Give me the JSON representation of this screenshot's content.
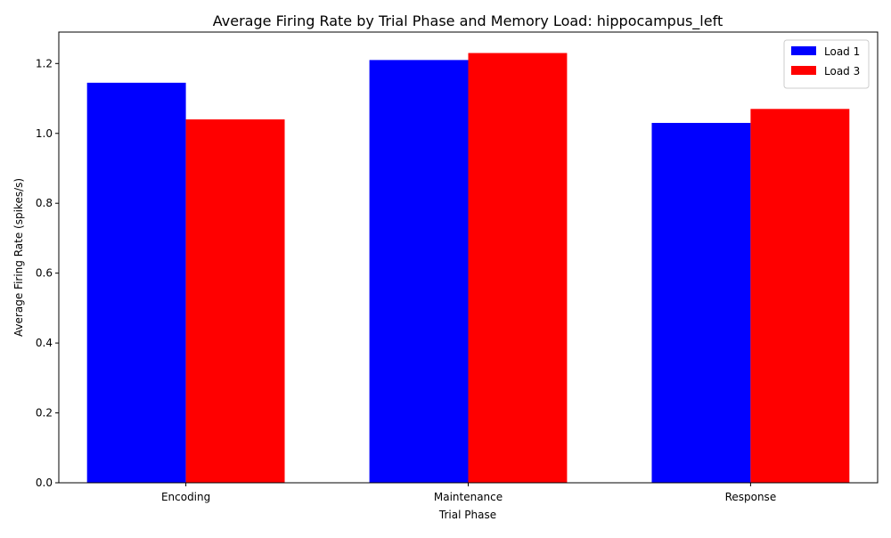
{
  "chart_data": {
    "type": "bar",
    "title": "Average Firing Rate by Trial Phase and Memory Load: hippocampus_left",
    "xlabel": "Trial Phase",
    "ylabel": "Average Firing Rate (spikes/s)",
    "categories": [
      "Encoding",
      "Maintenance",
      "Response"
    ],
    "series": [
      {
        "name": "Load 1",
        "color": "#0000ff",
        "values": [
          1.145,
          1.21,
          1.03
        ]
      },
      {
        "name": "Load 3",
        "color": "#ff0000",
        "values": [
          1.04,
          1.23,
          1.07
        ]
      }
    ],
    "ylim": [
      0,
      1.29
    ],
    "yticks": [
      "0.0",
      "0.2",
      "0.4",
      "0.6",
      "0.8",
      "1.0",
      "1.2"
    ],
    "grid": false,
    "legend_position": "top-right"
  }
}
